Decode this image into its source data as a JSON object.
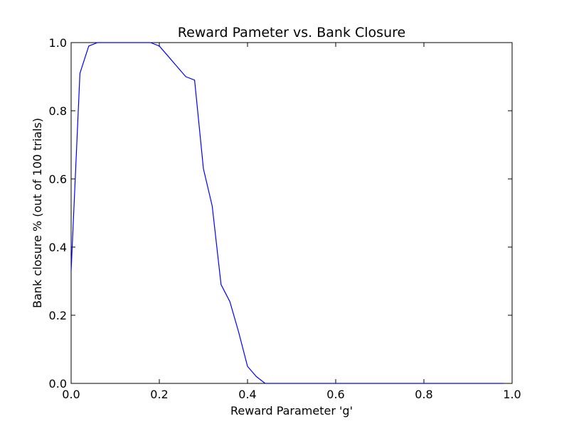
{
  "chart_data": {
    "type": "line",
    "title": "Reward Pameter vs. Bank Closure",
    "xlabel": "Reward Parameter 'g'",
    "ylabel": "Bank closure % (out of 100 trials)",
    "xlim": [
      0.0,
      1.0
    ],
    "ylim": [
      0.0,
      1.0
    ],
    "xticks": [
      "0.0",
      "0.2",
      "0.4",
      "0.6",
      "0.8",
      "1.0"
    ],
    "yticks": [
      "0.0",
      "0.2",
      "0.4",
      "0.6",
      "0.8",
      "1.0"
    ],
    "grid": false,
    "series": [
      {
        "color": "#0000ff",
        "x": [
          0.0,
          0.02,
          0.04,
          0.06,
          0.08,
          0.1,
          0.12,
          0.14,
          0.16,
          0.18,
          0.2,
          0.22,
          0.24,
          0.26,
          0.28,
          0.3,
          0.32,
          0.34,
          0.36,
          0.38,
          0.4,
          0.42,
          0.44,
          0.46,
          0.48,
          0.5,
          0.52,
          0.54,
          0.56,
          0.58,
          0.6,
          0.62,
          0.64,
          0.66,
          0.68,
          0.7,
          0.72,
          0.74,
          0.76,
          0.78,
          0.8,
          0.82,
          0.84,
          0.86,
          0.88,
          0.9,
          0.92,
          0.94,
          0.96,
          0.98
        ],
        "y": [
          0.33,
          0.91,
          0.99,
          1.0,
          1.0,
          1.0,
          1.0,
          1.0,
          1.0,
          1.0,
          0.99,
          0.96,
          0.93,
          0.9,
          0.89,
          0.63,
          0.52,
          0.29,
          0.24,
          0.15,
          0.05,
          0.02,
          0.0,
          0.0,
          0.0,
          0.0,
          0.0,
          0.0,
          0.0,
          0.0,
          0.0,
          0.0,
          0.0,
          0.0,
          0.0,
          0.0,
          0.0,
          0.0,
          0.0,
          0.0,
          0.0,
          0.0,
          0.0,
          0.0,
          0.0,
          0.0,
          0.0,
          0.0,
          0.0,
          0.0
        ]
      }
    ]
  }
}
